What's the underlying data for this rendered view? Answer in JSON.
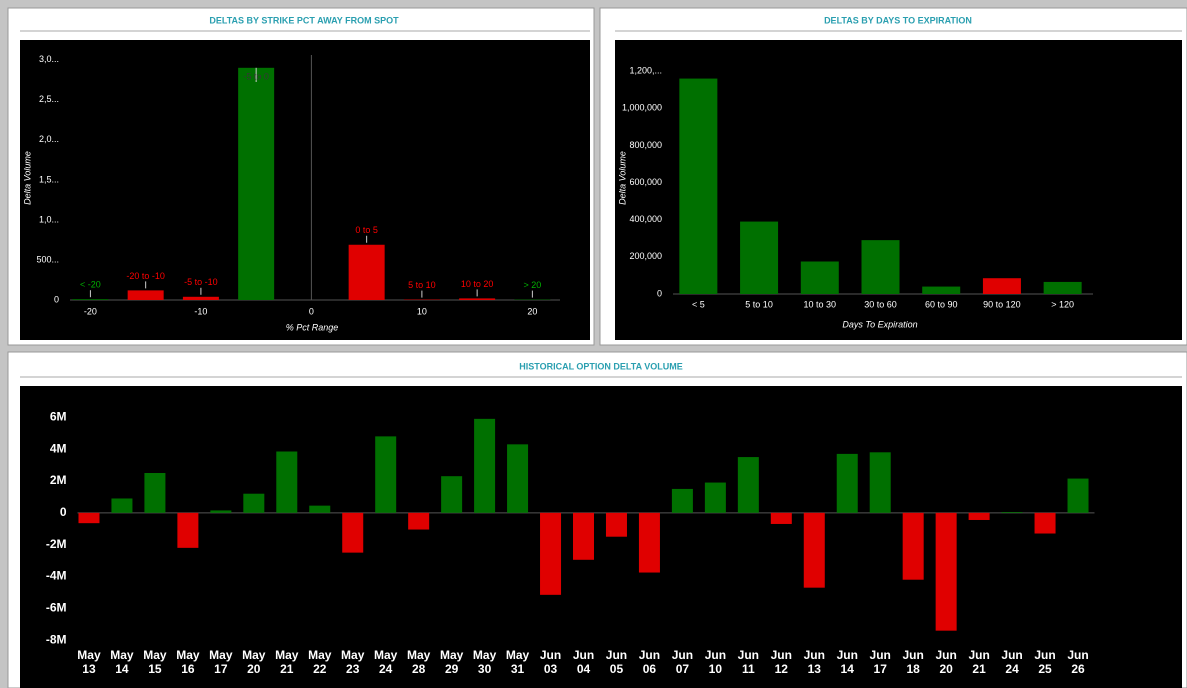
{
  "chart_data": [
    {
      "type": "bar",
      "title": "DELTAS BY STRIKE PCT AWAY FROM SPOT",
      "xlabel": "% Pct Range",
      "ylabel": "Delta Volume",
      "categories": [
        "< -20",
        "-20 to -10",
        "-5 to -10",
        "-5 to 0",
        "0 to 5",
        "5 to 10",
        "10 to 20",
        "> 20"
      ],
      "x": [
        -20,
        -15,
        -10,
        -5,
        5,
        10,
        15,
        20
      ],
      "values": [
        10000,
        120000,
        40000,
        2900000,
        690000,
        5000,
        20000,
        5000
      ],
      "colors": [
        "#007000",
        "#e00000",
        "#e00000",
        "#007000",
        "#e00000",
        "#e00000",
        "#e00000",
        "#007000"
      ],
      "xlim": [
        -22.3,
        22.5
      ],
      "xticks": [
        -20,
        -10,
        0,
        10,
        20
      ],
      "ylim": [
        0,
        3060000
      ],
      "yticks": [
        0,
        {
          "value": 500000,
          "label": "500..."
        },
        {
          "value": 1000000,
          "label": "1,0..."
        },
        {
          "value": 1500000,
          "label": "1,5..."
        },
        {
          "value": 2000000,
          "label": "2,0..."
        },
        {
          "value": 2500000,
          "label": "2,5..."
        },
        {
          "value": 3000000,
          "label": "3,0..."
        }
      ]
    },
    {
      "type": "bar",
      "title": "DELTAS BY DAYS TO EXPIRATION",
      "xlabel": "Days To Expiration",
      "ylabel": "Delta Volume",
      "categories": [
        "< 5",
        "5 to 10",
        "10 to 30",
        "30 to 60",
        "60 to 90",
        "90 to 120",
        "> 120"
      ],
      "values": [
        1160000,
        390000,
        175000,
        290000,
        40000,
        85000,
        65000
      ],
      "colors": [
        "#007000",
        "#007000",
        "#007000",
        "#007000",
        "#007000",
        "#e00000",
        "#007000"
      ],
      "ylim": [
        0,
        1260000
      ],
      "yticks": [
        0,
        {
          "value": 200000,
          "label": "200,000"
        },
        {
          "value": 400000,
          "label": "400,000"
        },
        {
          "value": 600000,
          "label": "600,000"
        },
        {
          "value": 800000,
          "label": "800,000"
        },
        {
          "value": 1000000,
          "label": "1,000,000"
        },
        {
          "value": 1200000,
          "label": "1,200,..."
        }
      ]
    },
    {
      "type": "bar",
      "title": "HISTORICAL OPTION DELTA VOLUME",
      "categories": [
        "May 13",
        "May 14",
        "May 15",
        "May 16",
        "May 17",
        "May 20",
        "May 21",
        "May 22",
        "May 23",
        "May 24",
        "May 28",
        "May 29",
        "May 30",
        "May 31",
        "Jun 03",
        "Jun 04",
        "Jun 05",
        "Jun 06",
        "Jun 07",
        "Jun 10",
        "Jun 11",
        "Jun 12",
        "Jun 13",
        "Jun 14",
        "Jun 17",
        "Jun 18",
        "Jun 20",
        "Jun 21",
        "Jun 24",
        "Jun 25",
        "Jun 26"
      ],
      "values": [
        -650000,
        900000,
        2500000,
        -2200000,
        150000,
        1200000,
        3850000,
        450000,
        -2500000,
        4800000,
        -1050000,
        2300000,
        5900000,
        4300000,
        -5150000,
        -2950000,
        -1500000,
        -3750000,
        1500000,
        1900000,
        3500000,
        -700000,
        -4700000,
        3700000,
        3800000,
        -4200000,
        -7400000,
        -450000,
        50000,
        -1300000,
        2150000
      ],
      "positive_color": "#007000",
      "negative_color": "#e00000",
      "ylim": [
        -8300000,
        7900000
      ],
      "yticks": [
        {
          "value": -8000000,
          "label": "-8M"
        },
        {
          "value": -6000000,
          "label": "-6M"
        },
        {
          "value": -4000000,
          "label": "-4M"
        },
        {
          "value": -2000000,
          "label": "-2M"
        },
        0,
        {
          "value": 2000000,
          "label": "2M"
        },
        {
          "value": 4000000,
          "label": "4M"
        },
        {
          "value": 6000000,
          "label": "6M"
        }
      ]
    }
  ]
}
